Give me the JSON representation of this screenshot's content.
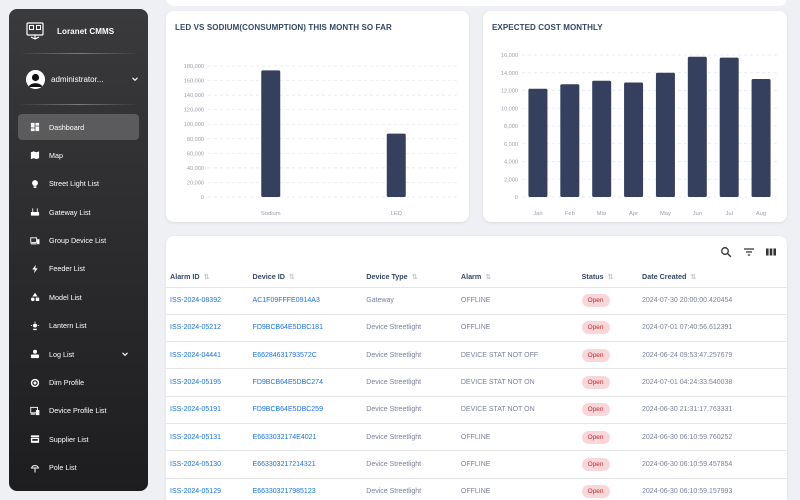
{
  "brand": {
    "name": "Loranet CMMS"
  },
  "user": {
    "name": "administrator..."
  },
  "sidebar": {
    "items": [
      {
        "label": "Dashboard",
        "icon": "dashboard-icon",
        "active": true
      },
      {
        "label": "Map",
        "icon": "map-icon"
      },
      {
        "label": "Street Light List",
        "icon": "bulb-icon"
      },
      {
        "label": "Gateway List",
        "icon": "router-icon"
      },
      {
        "label": "Group Device List",
        "icon": "devices-icon"
      },
      {
        "label": "Feeder List",
        "icon": "bolt-icon"
      },
      {
        "label": "Model List",
        "icon": "category-icon"
      },
      {
        "label": "Lantern List",
        "icon": "light-icon"
      },
      {
        "label": "Log List",
        "icon": "log-icon",
        "expandable": true
      },
      {
        "label": "Dim Profile",
        "icon": "brightness-icon"
      },
      {
        "label": "Device Profile List",
        "icon": "device-profile-icon"
      },
      {
        "label": "Supplier List",
        "icon": "store-icon"
      },
      {
        "label": "Pole List",
        "icon": "pole-icon"
      }
    ]
  },
  "charts": {
    "led_vs_sodium": {
      "title": "LED VS SODIUM(CONSUMPTION) THIS MONTH SO FAR"
    },
    "expected_cost": {
      "title": "EXPECTED COST MONTHLY"
    }
  },
  "chart_data": [
    {
      "type": "bar",
      "title": "LED VS SODIUM(CONSUMPTION) THIS MONTH SO FAR",
      "categories": [
        "Sodium",
        "LED"
      ],
      "values": [
        174000,
        87000
      ],
      "ylim": [
        0,
        180000
      ],
      "yticks": [
        "0",
        "20,000",
        "40,000",
        "60,000",
        "80,000",
        "100,000",
        "120,000",
        "140,000",
        "160,000",
        "180,000"
      ],
      "bar_color": "#34405e",
      "grid": true
    },
    {
      "type": "bar",
      "title": "EXPECTED COST MONTHLY",
      "categories": [
        "Jan",
        "Feb",
        "Mar",
        "Apr",
        "May",
        "Jun",
        "Jul",
        "Aug"
      ],
      "values": [
        12200,
        12700,
        13100,
        12900,
        14000,
        15800,
        15700,
        13300
      ],
      "ylim": [
        0,
        16000
      ],
      "yticks": [
        "0",
        "2,000",
        "4,000",
        "6,000",
        "8,000",
        "10,000",
        "12,000",
        "14,000",
        "16,000"
      ],
      "bar_color": "#34405e",
      "grid": true
    }
  ],
  "table": {
    "headers": [
      "Alarm ID",
      "Device ID",
      "Device Type",
      "Alarm",
      "Status",
      "Date Created"
    ],
    "rows": [
      [
        "ISS-2024-08392",
        "AC1F09FFFE0914A3",
        "Gateway",
        "OFFLINE",
        "Open",
        "2024-07-30 20:00:00.420454"
      ],
      [
        "ISS-2024-05212",
        "FD9BCB64E5DBC181",
        "Device Streetlight",
        "OFFLINE",
        "Open",
        "2024-07-01 07:40:56.612391"
      ],
      [
        "ISS-2024-04441",
        "E66284631793572C",
        "Device Streetlight",
        "DEVICE STAT NOT OFF",
        "Open",
        "2024-06-24 09:53:47.257679"
      ],
      [
        "ISS-2024-05195",
        "FD9BCB64E5DBC274",
        "Device Streetlight",
        "DEVICE STAT NOT ON",
        "Open",
        "2024-07-01 04:24:33.540038"
      ],
      [
        "ISS-2024-05191",
        "FD9BCB64E5DBC259",
        "Device Streetlight",
        "DEVICE STAT NOT ON",
        "Open",
        "2024-06-30 21:31:17.763331"
      ],
      [
        "ISS-2024-05131",
        "E6633032174E4021",
        "Device Streetlight",
        "OFFLINE",
        "Open",
        "2024-06-30 06:10:59.760252"
      ],
      [
        "ISS-2024-05130",
        "E663303217214321",
        "Device Streetlight",
        "OFFLINE",
        "Open",
        "2024-06-30 06:10:59.457854"
      ],
      [
        "ISS-2024-05129",
        "E663303217985123",
        "Device Streetlight",
        "OFFLINE",
        "Open",
        "2024-06-30 06:10:59.157993"
      ]
    ]
  },
  "toolbar": {
    "search_icon": "search-icon",
    "filter_icon": "filter-icon",
    "columns_icon": "view-column-icon"
  }
}
